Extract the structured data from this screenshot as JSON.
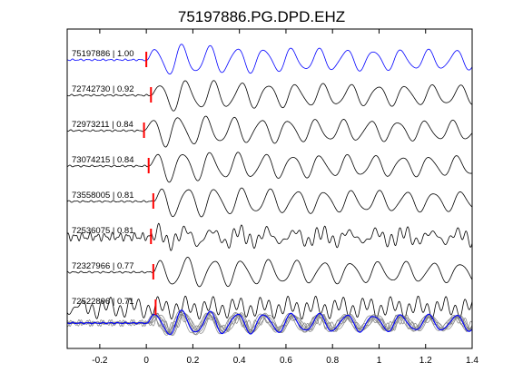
{
  "chart_data": {
    "type": "line",
    "title": "75197886.PG.DPD.EHZ",
    "xlabel": "",
    "ylabel": "",
    "xlim": [
      -0.34,
      1.4
    ],
    "xticks": [
      -0.2,
      0,
      0.2,
      0.4,
      0.6,
      0.8,
      1,
      1.2,
      1.4
    ],
    "xtick_labels": [
      "-0.2",
      "0",
      "0.2",
      "0.4",
      "0.6",
      "0.8",
      "1",
      "1.2",
      "1.4"
    ],
    "grid": false,
    "legend": "none",
    "colors": {
      "reference": "#0000ff",
      "trace": "#000000",
      "pick": "#ff0000",
      "stack": "#808080"
    },
    "traces": [
      {
        "label": "75197886 | 1.00",
        "pick_time": 0.0,
        "color": "#0000ff",
        "style": "smooth"
      },
      {
        "label": "72742730 | 0.92",
        "pick_time": 0.02,
        "color": "#000000",
        "style": "smooth"
      },
      {
        "label": "72973211 | 0.84",
        "pick_time": -0.01,
        "color": "#000000",
        "style": "smooth"
      },
      {
        "label": "73074215 | 0.84",
        "pick_time": 0.01,
        "color": "#000000",
        "style": "smooth"
      },
      {
        "label": "73558005 | 0.81",
        "pick_time": 0.03,
        "color": "#000000",
        "style": "smooth"
      },
      {
        "label": "72536075 | 0.81",
        "pick_time": 0.02,
        "color": "#000000",
        "style": "noisy"
      },
      {
        "label": "72327966 | 0.77",
        "pick_time": 0.03,
        "color": "#000000",
        "style": "smooth"
      },
      {
        "label": "72522896 | 0.71",
        "pick_time": 0.04,
        "color": "#000000",
        "style": "oscillating"
      }
    ],
    "stack": {
      "overlay_count": 8,
      "mean_color": "#0000ff",
      "overlay_color": "#808080"
    }
  }
}
